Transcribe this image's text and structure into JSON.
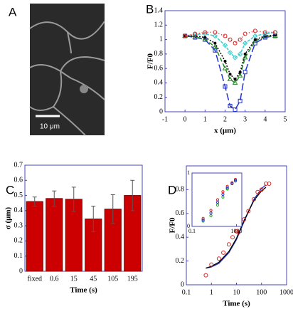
{
  "chart_data": [
    {
      "type": "image",
      "panel": "A",
      "scale_bar_label": "10 μm"
    },
    {
      "type": "line",
      "panel": "B",
      "xlabel": "x (μm)",
      "ylabel": "F/F0",
      "xlim": [
        -1,
        5
      ],
      "ylim": [
        0,
        1.4
      ],
      "xticks": [
        -1,
        0,
        1,
        2,
        3,
        4,
        5
      ],
      "yticks": [
        0,
        0.2,
        0.4,
        0.6,
        0.8,
        1,
        1.2,
        1.4
      ],
      "x": [
        0,
        0.5,
        1,
        1.5,
        2,
        2.25,
        2.5,
        2.75,
        3,
        3.5,
        4,
        4.5
      ],
      "series": [
        {
          "color": "#2233cc",
          "dash": "10 4",
          "marker": "square",
          "values": [
            1.05,
            1.03,
            1.0,
            0.85,
            0.35,
            0.08,
            0.03,
            0.15,
            0.55,
            0.95,
            1.03,
            1.05
          ]
        },
        {
          "color": "#228822",
          "dash": "6 3",
          "marker": "triangle",
          "values": [
            1.05,
            1.04,
            1.0,
            0.9,
            0.6,
            0.45,
            0.4,
            0.5,
            0.75,
            0.98,
            1.04,
            1.05
          ]
        },
        {
          "color": "#000000",
          "dash": "2 2",
          "marker": "dot",
          "values": [
            1.05,
            1.05,
            1.03,
            0.95,
            0.7,
            0.52,
            0.45,
            0.55,
            0.8,
            1.0,
            1.05,
            1.06
          ]
        },
        {
          "color": "#33cccc",
          "dash": "4 2",
          "marker": "diamond",
          "values": [
            1.05,
            1.07,
            1.08,
            1.05,
            0.92,
            0.82,
            0.75,
            0.8,
            0.95,
            1.05,
            1.08,
            1.1
          ]
        },
        {
          "color": "#dd2222",
          "dash": "1 3",
          "marker": "circle",
          "values": [
            1.05,
            1.08,
            1.1,
            1.1,
            1.05,
            1.0,
            0.95,
            1.0,
            1.08,
            1.12,
            1.1,
            1.1
          ]
        }
      ]
    },
    {
      "type": "bar",
      "panel": "C",
      "xlabel": "Time (s)",
      "ylabel": "σ (μm)",
      "color": "#cc0000",
      "categories": [
        "fixed",
        "0.6",
        "15",
        "45",
        "105",
        "195"
      ],
      "values": [
        0.46,
        0.48,
        0.475,
        0.345,
        0.41,
        0.5
      ],
      "errors": [
        0.03,
        0.05,
        0.08,
        0.085,
        0.095,
        0.1
      ],
      "ylim": [
        0,
        0.7
      ],
      "yticks": [
        0,
        0.1,
        0.2,
        0.3,
        0.4,
        0.5,
        0.6,
        0.7
      ]
    },
    {
      "type": "scatter",
      "panel": "D",
      "xlabel": "Time (s)",
      "ylabel": "F/F0",
      "xlog": true,
      "xlim": [
        0.1,
        1000
      ],
      "ylim": [
        0,
        1
      ],
      "xticks": [
        0.1,
        1,
        10,
        100,
        1000
      ],
      "yticks": [
        0,
        0.2,
        0.4,
        0.6,
        0.8
      ],
      "points": {
        "color": "#dd2222",
        "x": [
          0.6,
          1,
          2,
          3,
          5,
          7,
          10,
          12,
          20,
          30,
          50,
          70,
          100,
          150,
          200
        ],
        "values": [
          0.08,
          0.17,
          0.22,
          0.27,
          0.34,
          0.4,
          0.45,
          0.44,
          0.55,
          0.62,
          0.72,
          0.78,
          0.8,
          0.85,
          0.85
        ]
      },
      "fits": {
        "x": [
          0.6,
          1,
          2,
          5,
          10,
          20,
          50,
          100,
          150
        ],
        "series": [
          {
            "color": "#2233cc",
            "values": [
              0.14,
              0.15,
              0.18,
              0.27,
              0.38,
              0.53,
              0.72,
              0.81,
              0.84
            ]
          },
          {
            "color": "#000000",
            "values": [
              0.14,
              0.155,
              0.19,
              0.28,
              0.39,
              0.54,
              0.71,
              0.79,
              0.82
            ]
          }
        ]
      },
      "inset": {
        "xlog": true,
        "xlim": [
          0.1,
          3000
        ],
        "ylim": [
          0,
          1
        ],
        "xticks": [
          0.1,
          1000
        ],
        "yticks": [
          0,
          1
        ],
        "series": [
          {
            "color": "#dd2222",
            "x": [
              1,
              5,
              20,
              60,
              150,
              400,
              800
            ],
            "values": [
              0.15,
              0.3,
              0.5,
              0.65,
              0.75,
              0.82,
              0.88
            ]
          },
          {
            "color": "#22aa22",
            "x": [
              1,
              5,
              20,
              60,
              150,
              400,
              800
            ],
            "values": [
              0.1,
              0.2,
              0.4,
              0.55,
              0.7,
              0.8,
              0.85
            ]
          },
          {
            "color": "#2233cc",
            "x": [
              1,
              5,
              20,
              60,
              150,
              400,
              800
            ],
            "values": [
              0.12,
              0.25,
              0.45,
              0.6,
              0.72,
              0.8,
              0.86
            ]
          }
        ]
      }
    }
  ]
}
